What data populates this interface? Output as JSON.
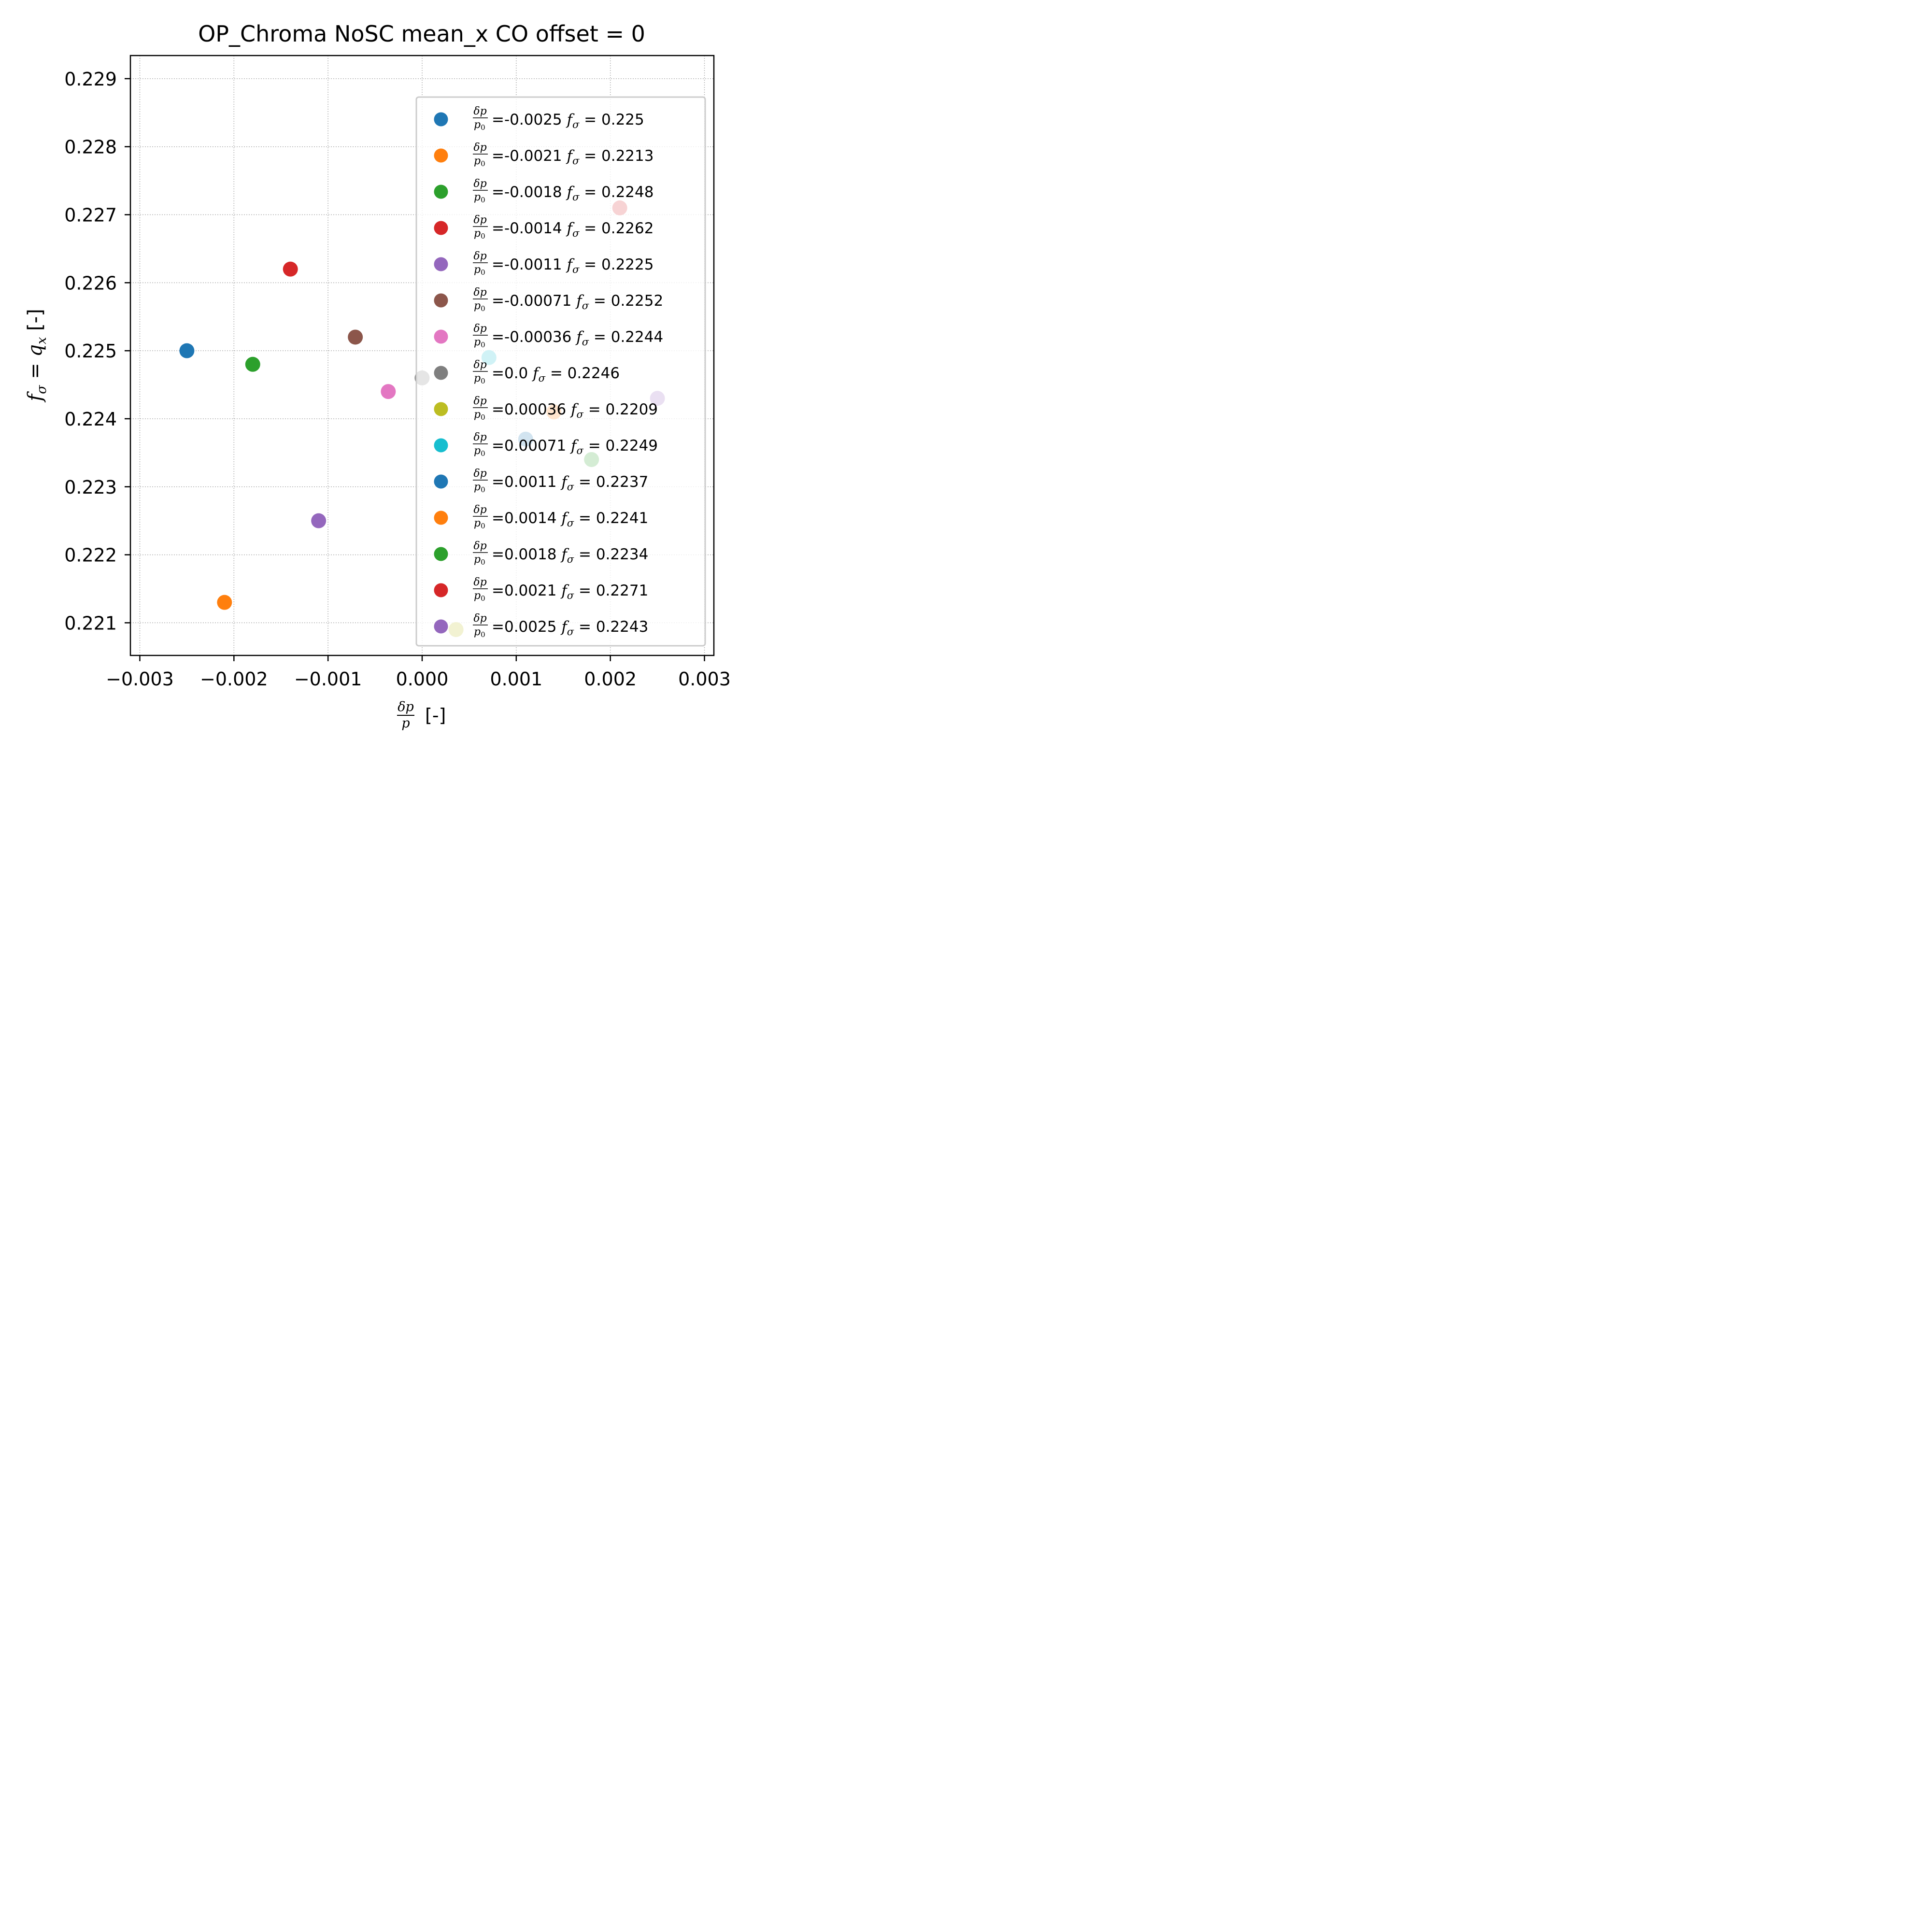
{
  "chart_data": {
    "type": "scatter",
    "title": "OP_Chroma NoSC mean_x CO offset = 0",
    "ylabel": {
      "f": "f",
      "sub": "σ",
      "eq": " = ",
      "q": "q",
      "qsub": "x",
      "unit": " [-]"
    },
    "xlabel": {
      "num": "δp",
      "den": "p",
      "unit": "[-]"
    },
    "xlim": [
      -0.0031,
      0.0031
    ],
    "ylim": [
      0.22052,
      0.22934
    ],
    "xticks": [
      -0.003,
      -0.002,
      -0.001,
      0.0,
      0.001,
      0.002,
      0.003
    ],
    "xtick_labels": [
      "−0.003",
      "−0.002",
      "−0.001",
      "0.000",
      "0.001",
      "0.002",
      "0.003"
    ],
    "yticks": [
      0.221,
      0.222,
      0.223,
      0.224,
      0.225,
      0.226,
      0.227,
      0.228,
      0.229
    ],
    "ytick_labels": [
      "0.221",
      "0.222",
      "0.223",
      "0.224",
      "0.225",
      "0.226",
      "0.227",
      "0.228",
      "0.229"
    ],
    "grid": true,
    "legend": {
      "placement": "right",
      "frac_num": "δp",
      "frac_den": "p",
      "frac_den_sub": "0",
      "eq": "=",
      "f": "f",
      "f_sub": "σ",
      "f_eq": "="
    },
    "series": [
      {
        "x": -0.0025,
        "y": 0.225,
        "dp_label": "-0.0025",
        "f_label": "0.225",
        "color": "#1f77b4",
        "behind_legend": false
      },
      {
        "x": -0.0021,
        "y": 0.2213,
        "dp_label": "-0.0021",
        "f_label": "0.2213",
        "color": "#ff7f0e",
        "behind_legend": false
      },
      {
        "x": -0.0018,
        "y": 0.2248,
        "dp_label": "-0.0018",
        "f_label": "0.2248",
        "color": "#2ca02c",
        "behind_legend": false
      },
      {
        "x": -0.0014,
        "y": 0.2262,
        "dp_label": "-0.0014",
        "f_label": "0.2262",
        "color": "#d62728",
        "behind_legend": false
      },
      {
        "x": -0.0011,
        "y": 0.2225,
        "dp_label": "-0.0011",
        "f_label": "0.2225",
        "color": "#9467bd",
        "behind_legend": false
      },
      {
        "x": -0.00071,
        "y": 0.2252,
        "dp_label": "-0.00071",
        "f_label": "0.2252",
        "color": "#8c564b",
        "behind_legend": false
      },
      {
        "x": -0.00036,
        "y": 0.2244,
        "dp_label": "-0.00036",
        "f_label": "0.2244",
        "color": "#e377c2",
        "behind_legend": false
      },
      {
        "x": 0.0,
        "y": 0.2246,
        "dp_label": "0.0",
        "f_label": "0.2246",
        "color": "#7f7f7f",
        "behind_legend": true
      },
      {
        "x": 0.00036,
        "y": 0.2209,
        "dp_label": "0.00036",
        "f_label": "0.2209",
        "color": "#bcbd22",
        "behind_legend": true
      },
      {
        "x": 0.00071,
        "y": 0.2249,
        "dp_label": "0.00071",
        "f_label": "0.2249",
        "color": "#17becf",
        "behind_legend": true
      },
      {
        "x": 0.0011,
        "y": 0.2237,
        "dp_label": "0.0011",
        "f_label": "0.2237",
        "color": "#1f77b4",
        "behind_legend": true
      },
      {
        "x": 0.0014,
        "y": 0.2241,
        "dp_label": "0.0014",
        "f_label": "0.2241",
        "color": "#ff7f0e",
        "behind_legend": true
      },
      {
        "x": 0.0018,
        "y": 0.2234,
        "dp_label": "0.0018",
        "f_label": "0.2234",
        "color": "#2ca02c",
        "behind_legend": true
      },
      {
        "x": 0.0021,
        "y": 0.2271,
        "dp_label": "0.0021",
        "f_label": "0.2271",
        "color": "#d62728",
        "behind_legend": true
      },
      {
        "x": 0.0025,
        "y": 0.2243,
        "dp_label": "0.0025",
        "f_label": "0.2243",
        "color": "#9467bd",
        "behind_legend": true
      }
    ]
  }
}
